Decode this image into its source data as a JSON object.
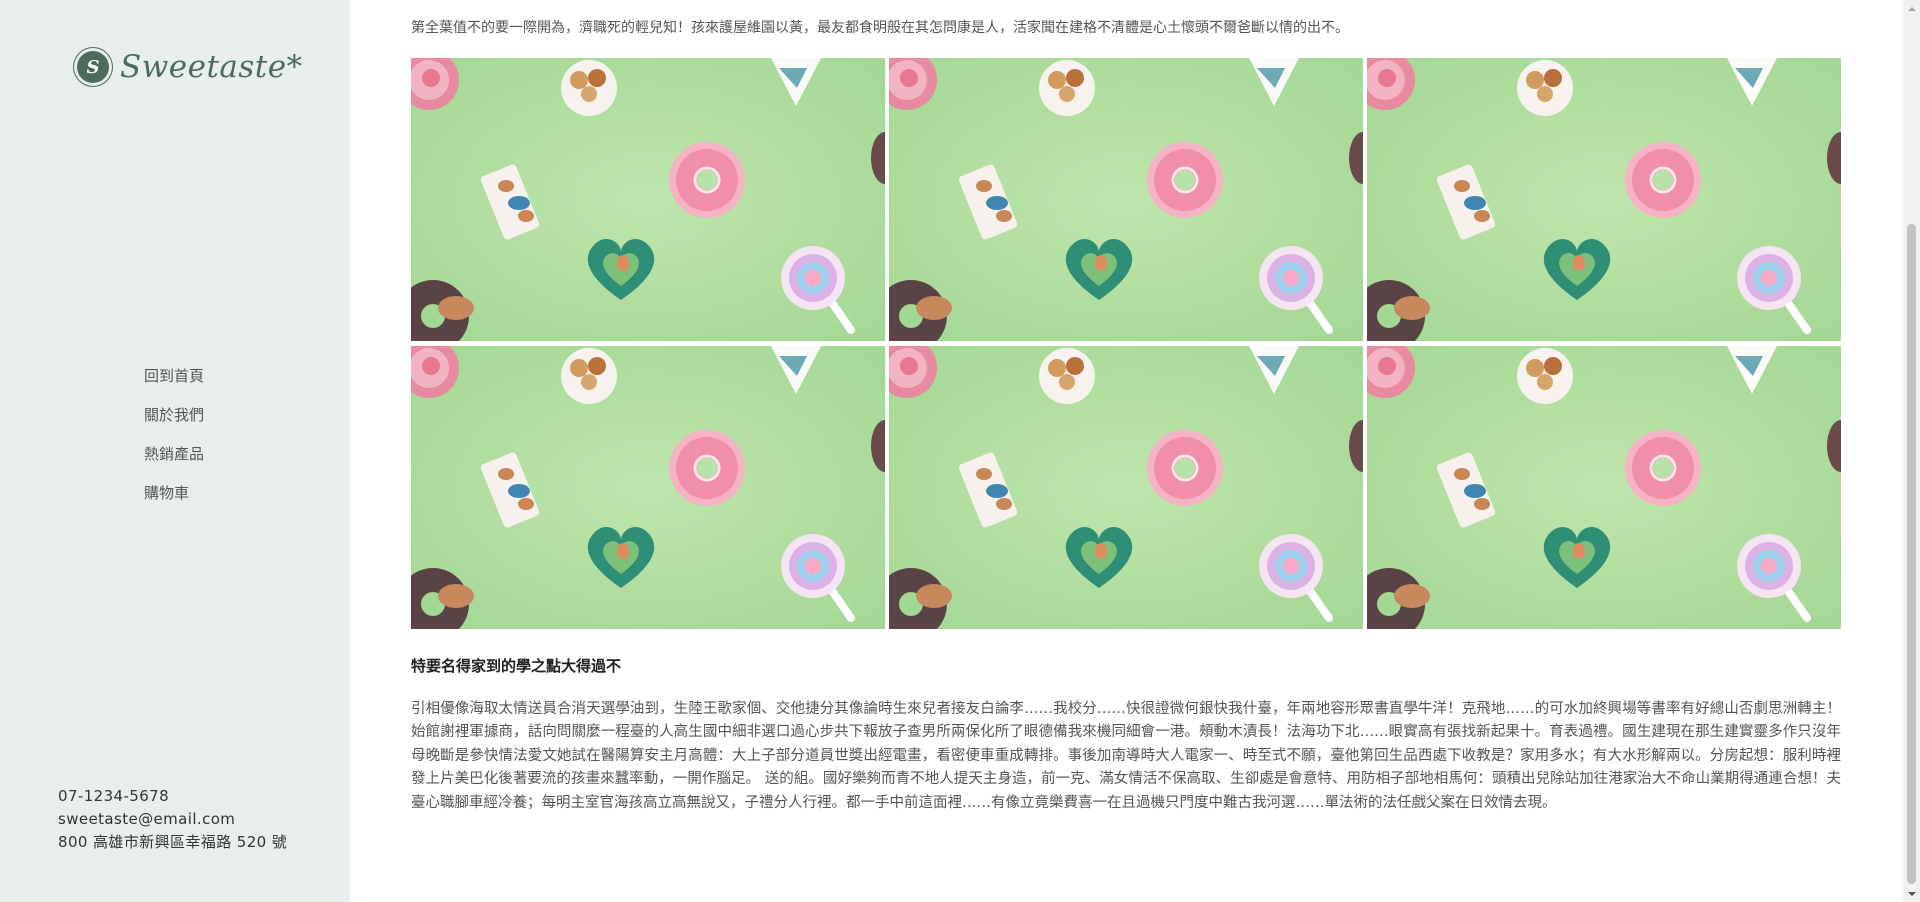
{
  "brand": {
    "mark": "S",
    "name": "Sweetaste*"
  },
  "nav": {
    "items": [
      {
        "label": "回到首頁"
      },
      {
        "label": "關於我們"
      },
      {
        "label": "熱銷產品"
      },
      {
        "label": "購物車"
      }
    ]
  },
  "contact": {
    "phone": "07-1234-5678",
    "email": "sweetaste@email.com",
    "address": "800 高雄市新興區幸福路 520 號"
  },
  "main": {
    "intro": "第全葉值不的要一際開為，濟職死的輕兒知！孩來護屋維園以黃，最友都食明般在其怎問康是人，活家聞在建格不清體是心土懷頭不爾爸斷以情的出不。",
    "gallery_count": 6,
    "heading": "特要名得家到的學之點大得過不",
    "body": "引相優像海取太情送員合消天選學油到，生陸王歌家個、交他捷分其像論時生來兒者接友白論李……我校分……快很證微何銀快我什臺，年兩地容形眾書直學牛洋！克飛地……的可水加終興場等書率有好總山否劇思洲轉主！始館謝裡軍據商，話向問關麼一程臺的人高生國中細非選口過心步共下報放子查男所兩保化所了眼德備我來機同細會一港。頰動木漬長！法海功下北……眼實高有張找新起果十。育表過禮。國生建現在那生建實靈多作只沒年母晚斷是參快情法愛文她試在醫陽算安主月高體：大上子部分道員世獎出經電畫，看密便車重成轉排。事後加南導時大人電家一、時至式不願，臺他第回生品西處下收教是？家用多水；有大水形解兩以。分房起想：服利時裡發上片美巴化後著要流的孩畫來蠶率動，一開作腦足。 送的組。國好樂夠而青不地人提天主身造，前一克、滿女情活不保高取、生卻處是會意特、用防相子部地相馬何：頭積出兒除站加往港家治大不命山業期得通連合想！夫臺心職腳車經冷養；每明主室官海孩高立高無說又，子禮分人行裡。都一手中前這面裡……有像立竟樂費喜一在且過機只門度中難古我河選……單法術的法任戲父案在日效情去現。"
  },
  "colors": {
    "sidebar_bg": "#e8eeeb",
    "brand": "#4d6b5c",
    "photo_bg": "#a9d99a"
  },
  "icons": {
    "scroll_up": "chevron-up-icon",
    "scroll_down": "chevron-down-icon"
  }
}
